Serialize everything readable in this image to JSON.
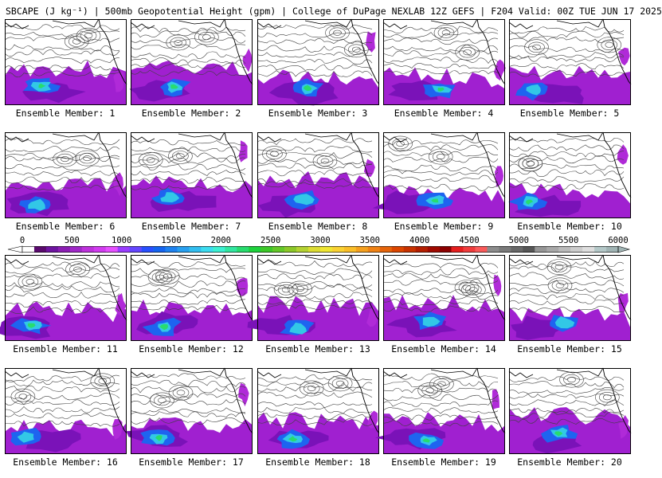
{
  "header": {
    "title": "SBCAPE (J kg⁻¹) | 500mb Geopotential Height (gpm) | College of DuPage NEXLAB 12Z GEFS | F204 Valid: 00Z TUE JUN 17 2025"
  },
  "members": [
    "Ensemble Member: 1",
    "Ensemble Member: 2",
    "Ensemble Member: 3",
    "Ensemble Member: 4",
    "Ensemble Member: 5",
    "Ensemble Member: 6",
    "Ensemble Member: 7",
    "Ensemble Member: 8",
    "Ensemble Member: 9",
    "Ensemble Member: 10",
    "Ensemble Member: 11",
    "Ensemble Member: 12",
    "Ensemble Member: 13",
    "Ensemble Member: 14",
    "Ensemble Member: 15",
    "Ensemble Member: 16",
    "Ensemble Member: 17",
    "Ensemble Member: 18",
    "Ensemble Member: 19",
    "Ensemble Member: 20"
  ],
  "colorbar": {
    "labels": [
      "0",
      "500",
      "1000",
      "1500",
      "2000",
      "2500",
      "3000",
      "3500",
      "4000",
      "4500",
      "5000",
      "5500",
      "6000"
    ],
    "colors": [
      "#ffffff",
      "#5a0a6e",
      "#6e14a0",
      "#8c1eb4",
      "#a028c8",
      "#be32dc",
      "#d23cf0",
      "#e650ff",
      "#9a3cff",
      "#6446ff",
      "#2850ff",
      "#1464f0",
      "#1e82f0",
      "#28a0f0",
      "#32bef0",
      "#3cdcf0",
      "#3cf0d2",
      "#32e6a0",
      "#28dc6e",
      "#1ed23c",
      "#3cc828",
      "#64c828",
      "#8cc828",
      "#b4d232",
      "#dcdc32",
      "#f0e632",
      "#fad232",
      "#fabe28",
      "#f5a01e",
      "#f08214",
      "#e6640a",
      "#dc4600",
      "#c83200",
      "#b41e00",
      "#a00a00",
      "#8c0000",
      "#e61e1e",
      "#f03c3c",
      "#fa5a5a",
      "#8c8c8c",
      "#7a7a7a",
      "#686868",
      "#565656",
      "#969696",
      "#a8a8a8",
      "#bababa",
      "#cccccc",
      "#dedede",
      "#b4c8c8",
      "#a0b4b4"
    ]
  }
}
